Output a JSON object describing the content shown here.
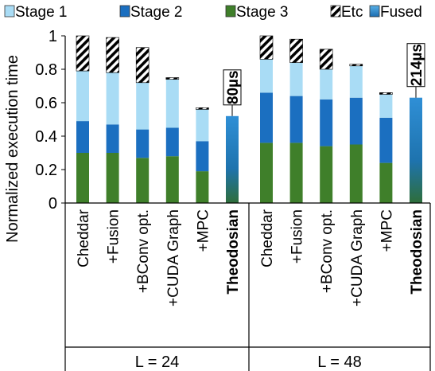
{
  "chart_data": {
    "type": "bar",
    "stacked": true,
    "ylabel": "Normalized execution time",
    "ylim": [
      0,
      1
    ],
    "yticks": [
      "0",
      "0.2",
      "0.4",
      "0.6",
      "0.8",
      "1"
    ],
    "grid": false,
    "legend_position": "top",
    "legend": [
      {
        "name": "Stage 1",
        "color": "#a9dcf5",
        "pattern": "solid"
      },
      {
        "name": "Stage 2",
        "color": "#1b6fc0",
        "pattern": "solid"
      },
      {
        "name": "Stage 3",
        "color": "#3f7f2a",
        "pattern": "solid"
      },
      {
        "name": "Etc",
        "color": "#000000",
        "pattern": "hatch"
      },
      {
        "name": "Fused",
        "color": "#2a85c9",
        "pattern": "gradient"
      }
    ],
    "groups": [
      {
        "label": "L = 24",
        "bars": [
          {
            "label": "Cheddar",
            "bold": false,
            "stage3": 0.3,
            "stage2": 0.19,
            "stage1": 0.3,
            "etc": 0.21
          },
          {
            "label": "+Fusion",
            "bold": false,
            "stage3": 0.3,
            "stage2": 0.17,
            "stage1": 0.31,
            "etc": 0.21
          },
          {
            "label": "+BConv opt.",
            "bold": false,
            "stage3": 0.27,
            "stage2": 0.17,
            "stage1": 0.28,
            "etc": 0.21
          },
          {
            "label": "+CUDA Graph",
            "bold": false,
            "stage3": 0.28,
            "stage2": 0.17,
            "stage1": 0.29,
            "etc": 0.01
          },
          {
            "label": "+MPC",
            "bold": false,
            "stage3": 0.19,
            "stage2": 0.18,
            "stage1": 0.19,
            "etc": 0.01
          },
          {
            "label": "Theodosian",
            "bold": true,
            "fused": 0.52,
            "annotation": "80µs"
          }
        ]
      },
      {
        "label": "L = 48",
        "bars": [
          {
            "label": "Cheddar",
            "bold": false,
            "stage3": 0.36,
            "stage2": 0.3,
            "stage1": 0.2,
            "etc": 0.14
          },
          {
            "label": "+Fusion",
            "bold": false,
            "stage3": 0.36,
            "stage2": 0.28,
            "stage1": 0.2,
            "etc": 0.14
          },
          {
            "label": "+BConv opt.",
            "bold": false,
            "stage3": 0.34,
            "stage2": 0.28,
            "stage1": 0.18,
            "etc": 0.12
          },
          {
            "label": "+CUDA Graph",
            "bold": false,
            "stage3": 0.35,
            "stage2": 0.28,
            "stage1": 0.19,
            "etc": 0.01
          },
          {
            "label": "+MPC",
            "bold": false,
            "stage3": 0.24,
            "stage2": 0.27,
            "stage1": 0.14,
            "etc": 0.01
          },
          {
            "label": "Theodosian",
            "bold": true,
            "fused": 0.63,
            "annotation": "214µs"
          }
        ]
      }
    ]
  }
}
